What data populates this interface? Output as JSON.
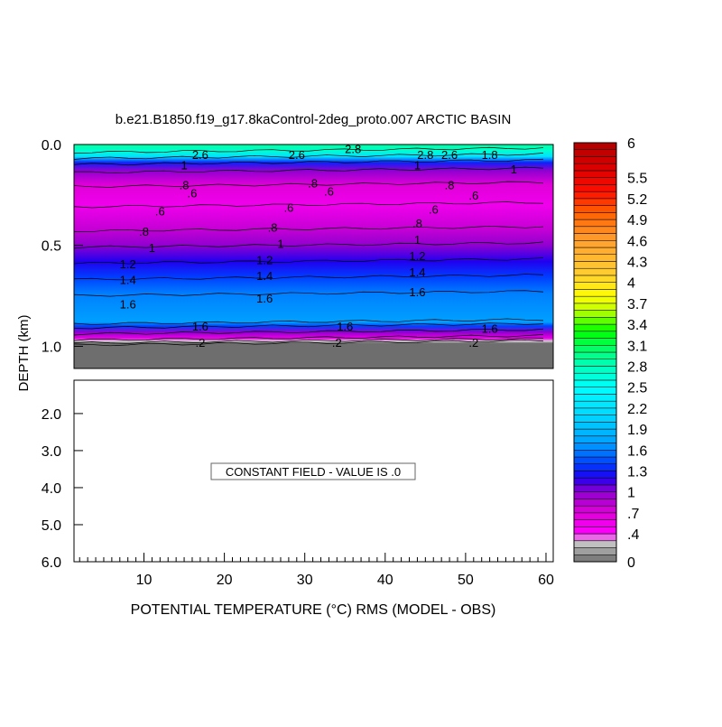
{
  "chart_data": {
    "type": "heatmap",
    "title": "b.e21.B1850.f19_g17.8kaControl-2deg_proto.007 ARCTIC BASIN",
    "xlabel": "POTENTIAL TEMPERATURE (°C) RMS (MODEL - OBS)",
    "xlabel_main": "POTENTIAL TEMPERATURE (",
    "xlabel_sup": "o",
    "xlabel_rest": "C) RMS (MODEL - OBS)",
    "ylabel": "DEPTH (km)",
    "xlim": [
      1.3,
      60.9
    ],
    "x_ticks": [
      "10",
      "20",
      "30",
      "40",
      "50",
      "60"
    ],
    "x_tick_values": [
      10,
      20,
      30,
      40,
      50,
      60
    ],
    "upper_panel": {
      "ylim": [
        0.0,
        1.11
      ],
      "y_ticks": [
        "0.0",
        "0.5",
        "1.0"
      ],
      "y_tick_values": [
        0,
        0.5,
        1.0
      ]
    },
    "lower_panel": {
      "ylim": [
        1.1,
        6.0
      ],
      "y_ticks": [
        "2.0",
        "3.0",
        "4.0",
        "5.0",
        "6.0"
      ],
      "y_tick_values": [
        2,
        3,
        4,
        5,
        6
      ],
      "annotation": "CONSTANT FIELD - VALUE IS .0"
    },
    "depth_profile": [
      {
        "depth": 0.0,
        "value": 2.9
      },
      {
        "depth": 0.03,
        "value": 2.7
      },
      {
        "depth": 0.06,
        "value": 2.2
      },
      {
        "depth": 0.09,
        "value": 1.3
      },
      {
        "depth": 0.13,
        "value": 1.0
      },
      {
        "depth": 0.2,
        "value": 0.7
      },
      {
        "depth": 0.3,
        "value": 0.55
      },
      {
        "depth": 0.42,
        "value": 0.8
      },
      {
        "depth": 0.5,
        "value": 1.0
      },
      {
        "depth": 0.58,
        "value": 1.2
      },
      {
        "depth": 0.66,
        "value": 1.4
      },
      {
        "depth": 0.74,
        "value": 1.6
      },
      {
        "depth": 0.88,
        "value": 1.7
      },
      {
        "depth": 0.9,
        "value": 1.4
      },
      {
        "depth": 0.93,
        "value": 1.0
      },
      {
        "depth": 0.96,
        "value": 0.6
      },
      {
        "depth": 0.975,
        "value": 0.3
      },
      {
        "depth": 0.985,
        "value": 0.0
      },
      {
        "depth": 1.11,
        "value": 0.0
      }
    ],
    "contour_labels": [
      {
        "text": "2.8",
        "x": 36,
        "depth": 0.02
      },
      {
        "text": "2.6",
        "x": 29,
        "depth": 0.05
      },
      {
        "text": "2.8",
        "x": 45,
        "depth": 0.05
      },
      {
        "text": "2.6",
        "x": 48,
        "depth": 0.05
      },
      {
        "text": "2.6",
        "x": 17,
        "depth": 0.05
      },
      {
        "text": "1.8",
        "x": 53,
        "depth": 0.05
      },
      {
        "text": "1",
        "x": 15,
        "depth": 0.1
      },
      {
        "text": "1",
        "x": 44,
        "depth": 0.1
      },
      {
        "text": "1",
        "x": 56,
        "depth": 0.12
      },
      {
        "text": ".8",
        "x": 15,
        "depth": 0.2
      },
      {
        "text": ".6",
        "x": 16,
        "depth": 0.24
      },
      {
        "text": ".8",
        "x": 31,
        "depth": 0.19
      },
      {
        "text": ".6",
        "x": 33,
        "depth": 0.23
      },
      {
        "text": ".8",
        "x": 48,
        "depth": 0.2
      },
      {
        "text": ".6",
        "x": 51,
        "depth": 0.25
      },
      {
        "text": ".6",
        "x": 12,
        "depth": 0.33
      },
      {
        "text": ".6",
        "x": 28,
        "depth": 0.31
      },
      {
        "text": ".6",
        "x": 46,
        "depth": 0.32
      },
      {
        "text": ".8",
        "x": 10,
        "depth": 0.43
      },
      {
        "text": ".8",
        "x": 26,
        "depth": 0.41
      },
      {
        "text": ".8",
        "x": 44,
        "depth": 0.39
      },
      {
        "text": "1",
        "x": 11,
        "depth": 0.51
      },
      {
        "text": "1",
        "x": 27,
        "depth": 0.49
      },
      {
        "text": "1",
        "x": 44,
        "depth": 0.47
      },
      {
        "text": "1.2",
        "x": 8,
        "depth": 0.59
      },
      {
        "text": "1.2",
        "x": 25,
        "depth": 0.57
      },
      {
        "text": "1.2",
        "x": 44,
        "depth": 0.55
      },
      {
        "text": "1.4",
        "x": 8,
        "depth": 0.67
      },
      {
        "text": "1.4",
        "x": 25,
        "depth": 0.65
      },
      {
        "text": "1.4",
        "x": 44,
        "depth": 0.63
      },
      {
        "text": "1.6",
        "x": 8,
        "depth": 0.79
      },
      {
        "text": "1.6",
        "x": 25,
        "depth": 0.76
      },
      {
        "text": "1.6",
        "x": 44,
        "depth": 0.73
      },
      {
        "text": "1.6",
        "x": 17,
        "depth": 0.9
      },
      {
        "text": "1.6",
        "x": 35,
        "depth": 0.9
      },
      {
        "text": "1.6",
        "x": 53,
        "depth": 0.91
      },
      {
        "text": ".2",
        "x": 17,
        "depth": 0.98
      },
      {
        "text": ".2",
        "x": 34,
        "depth": 0.98
      },
      {
        "text": ".2",
        "x": 51,
        "depth": 0.98
      }
    ],
    "colorbar": {
      "min": 0,
      "max": 6,
      "step": 0.1,
      "labels": [
        "0",
        ".4",
        ".7",
        "1",
        "1.3",
        "1.6",
        "1.9",
        "2.2",
        "2.5",
        "2.8",
        "3.1",
        "3.4",
        "3.7",
        "4",
        "4.3",
        "4.6",
        "4.9",
        "5.2",
        "5.5",
        "6"
      ],
      "label_values": [
        0,
        0.4,
        0.7,
        1,
        1.3,
        1.6,
        1.9,
        2.2,
        2.5,
        2.8,
        3.1,
        3.4,
        3.7,
        4,
        4.3,
        4.6,
        4.9,
        5.2,
        5.5,
        6
      ],
      "color_stops": [
        {
          "v": 0.0,
          "c": "#6e6e6e"
        },
        {
          "v": 0.3,
          "c": "#d0d0d0"
        },
        {
          "v": 0.4,
          "c": "#ff00ff"
        },
        {
          "v": 0.7,
          "c": "#e000d8"
        },
        {
          "v": 1.0,
          "c": "#9000d0"
        },
        {
          "v": 1.2,
          "c": "#2000f0"
        },
        {
          "v": 1.4,
          "c": "#0040ff"
        },
        {
          "v": 1.7,
          "c": "#00a0ff"
        },
        {
          "v": 2.1,
          "c": "#00d8ff"
        },
        {
          "v": 2.5,
          "c": "#00ffff"
        },
        {
          "v": 2.9,
          "c": "#00ffa0"
        },
        {
          "v": 3.3,
          "c": "#00ff00"
        },
        {
          "v": 3.6,
          "c": "#c0ff00"
        },
        {
          "v": 3.8,
          "c": "#ffff00"
        },
        {
          "v": 4.1,
          "c": "#ffd030"
        },
        {
          "v": 4.6,
          "c": "#ffa030"
        },
        {
          "v": 5.0,
          "c": "#ff6000"
        },
        {
          "v": 5.3,
          "c": "#ff1000"
        },
        {
          "v": 5.6,
          "c": "#e00000"
        },
        {
          "v": 6.0,
          "c": "#b00000"
        }
      ]
    }
  }
}
